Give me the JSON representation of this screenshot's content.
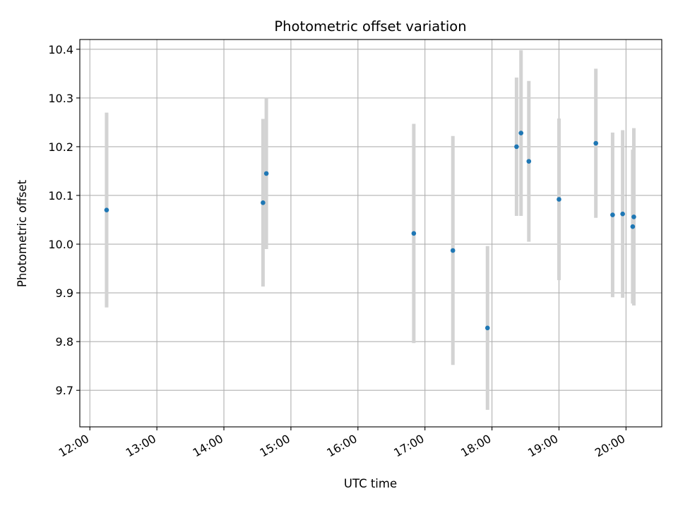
{
  "chart_data": {
    "type": "scatter",
    "title": "Photometric offset variation",
    "xlabel": "UTC time",
    "ylabel": "Photometric offset",
    "x_unit": "UTC time (HH:MM)",
    "xlim": [
      "11:51",
      "20:32"
    ],
    "ylim": [
      9.625,
      10.42
    ],
    "grid": true,
    "x_ticks": [
      "12:00",
      "13:00",
      "14:00",
      "15:00",
      "16:00",
      "17:00",
      "18:00",
      "19:00",
      "20:00"
    ],
    "y_ticks": [
      "9.7",
      "9.8",
      "9.9",
      "10.0",
      "10.1",
      "10.2",
      "10.3",
      "10.4"
    ],
    "point_color": "#1f77b4",
    "errorbar_color": "#d3d3d3",
    "points": [
      {
        "x": "12:15",
        "y": 10.07,
        "yerr": 0.2
      },
      {
        "x": "14:35",
        "y": 10.085,
        "yerr": 0.172
      },
      {
        "x": "14:38",
        "y": 10.145,
        "yerr": 0.155
      },
      {
        "x": "16:50",
        "y": 10.022,
        "yerr": 0.225
      },
      {
        "x": "17:25",
        "y": 9.987,
        "yerr": 0.235
      },
      {
        "x": "17:56",
        "y": 9.828,
        "yerr": 0.168
      },
      {
        "x": "18:22",
        "y": 10.2,
        "yerr": 0.142
      },
      {
        "x": "18:26",
        "y": 10.228,
        "yerr": 0.17
      },
      {
        "x": "18:33",
        "y": 10.17,
        "yerr": 0.165
      },
      {
        "x": "19:00",
        "y": 10.092,
        "yerr": 0.166
      },
      {
        "x": "19:33",
        "y": 10.207,
        "yerr": 0.153
      },
      {
        "x": "19:48",
        "y": 10.06,
        "yerr": 0.169
      },
      {
        "x": "19:57",
        "y": 10.062,
        "yerr": 0.172
      },
      {
        "x": "20:06",
        "y": 10.036,
        "yerr": 0.158
      },
      {
        "x": "20:07",
        "y": 10.056,
        "yerr": 0.182
      }
    ]
  }
}
